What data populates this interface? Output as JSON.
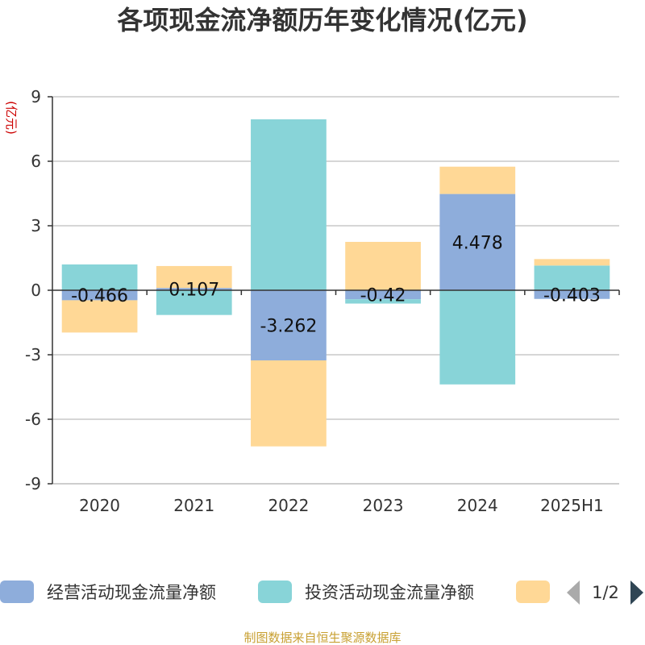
{
  "chart_data": {
    "type": "bar",
    "stacked": true,
    "title": "各项现金流净额历年变化情况(亿元)",
    "unit_label": "(亿元)",
    "categories": [
      "2020",
      "2021",
      "2022",
      "2023",
      "2024",
      "2025H1"
    ],
    "ylim": [
      -9,
      9
    ],
    "yticks": [
      9,
      6,
      3,
      0,
      -3,
      -6,
      -9
    ],
    "grid": true,
    "series": [
      {
        "name": "经营活动现金流量净额",
        "color": "#8eaddb",
        "values": [
          -0.466,
          0.107,
          -3.262,
          -0.42,
          4.478,
          -0.403
        ],
        "labels": [
          "-0.466",
          "0.107",
          "-3.262",
          "-0.42",
          "4.478",
          "-0.403"
        ]
      },
      {
        "name": "投资活动现金流量净额",
        "color": "#88d4d8",
        "values": [
          1.2,
          -1.15,
          7.95,
          -0.2,
          -4.38,
          1.15
        ]
      },
      {
        "name": "",
        "color": "#ffd896",
        "values": [
          -1.5,
          1.02,
          -4.0,
          2.25,
          1.27,
          0.3
        ]
      }
    ],
    "legend": {
      "position": "bottom",
      "page": "1/2"
    },
    "source": "制图数据来自恒生聚源数据库"
  }
}
